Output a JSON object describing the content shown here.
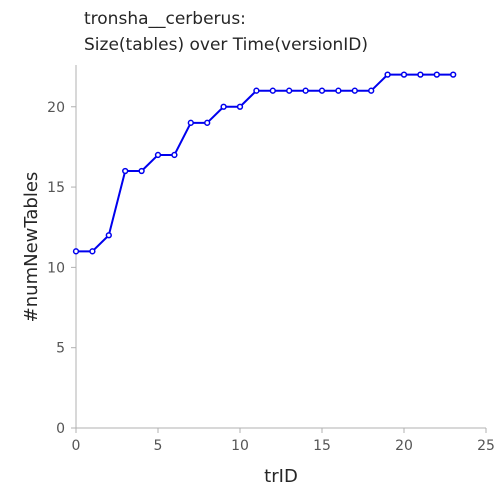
{
  "chart_data": {
    "type": "line",
    "title_lines": [
      "tronsha__cerberus:",
      "Size(tables) over Time(versionID)"
    ],
    "xlabel": "trID",
    "ylabel": "#numNewTables",
    "xlim": [
      0,
      25
    ],
    "ylim": [
      0,
      22.6
    ],
    "x_ticks": [
      0,
      5,
      10,
      15,
      20,
      25
    ],
    "y_ticks": [
      0,
      5,
      10,
      15,
      20
    ],
    "grid": false,
    "series": [
      {
        "color": "#0000ee",
        "marker": "circle",
        "x": [
          0,
          1,
          2,
          3,
          4,
          5,
          6,
          7,
          8,
          9,
          10,
          11,
          12,
          13,
          14,
          15,
          16,
          17,
          18,
          19,
          20,
          21,
          22,
          23
        ],
        "y": [
          11,
          11,
          12,
          16,
          16,
          17,
          17,
          19,
          19,
          20,
          20,
          21,
          21,
          21,
          21,
          21,
          21,
          21,
          21,
          22,
          22,
          22,
          22,
          22
        ]
      }
    ]
  }
}
